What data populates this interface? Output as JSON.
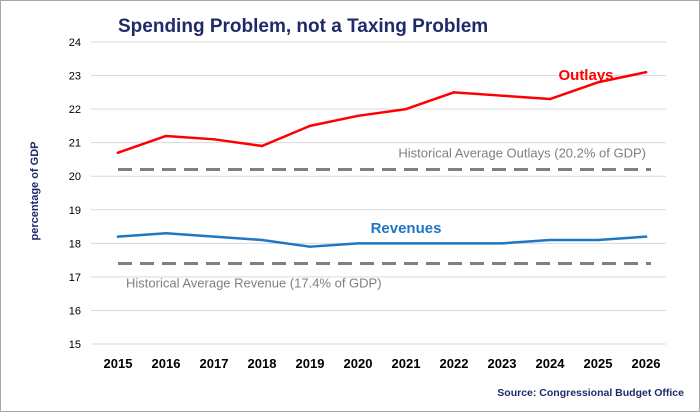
{
  "chart_data": {
    "type": "line",
    "title": "Spending Problem, not a Taxing Problem",
    "xlabel": "",
    "ylabel": "percentage of GDP",
    "source": "Source: Congressional Budget Office",
    "categories": [
      "2015",
      "2016",
      "2017",
      "2018",
      "2019",
      "2020",
      "2021",
      "2022",
      "2023",
      "2024",
      "2025",
      "2026"
    ],
    "ylim": [
      15,
      24
    ],
    "yticks": [
      15,
      16,
      17,
      18,
      19,
      20,
      21,
      22,
      23,
      24
    ],
    "grid": true,
    "series": [
      {
        "name": "Outlays",
        "color": "#ff0000",
        "values": [
          20.7,
          21.2,
          21.1,
          20.9,
          21.5,
          21.8,
          22.0,
          22.5,
          22.4,
          22.3,
          22.8,
          23.1
        ]
      },
      {
        "name": "Revenues",
        "color": "#1f77c4",
        "values": [
          18.2,
          18.3,
          18.2,
          18.1,
          17.9,
          18.0,
          18.0,
          18.0,
          18.0,
          18.1,
          18.1,
          18.2
        ]
      }
    ],
    "reference_lines": [
      {
        "label": "Historical Average Outlays (20.2% of GDP)",
        "value": 20.2,
        "color": "#808080"
      },
      {
        "label": "Historical Average Revenue (17.4% of GDP)",
        "value": 17.4,
        "color": "#808080"
      }
    ]
  }
}
